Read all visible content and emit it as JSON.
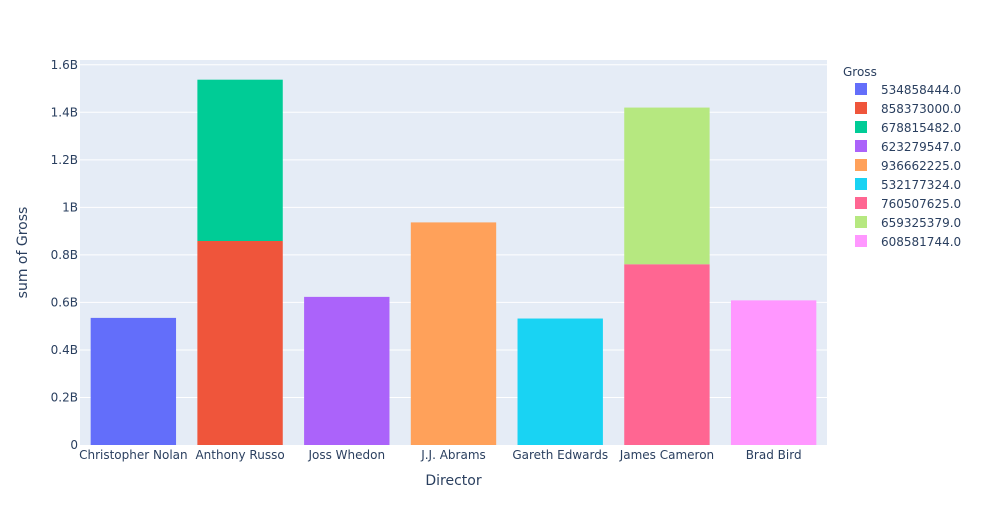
{
  "chart_data": {
    "type": "bar",
    "barmode": "stack",
    "xlabel": "Director",
    "ylabel": "sum of Gross",
    "ylim": [
      0,
      1620000000
    ],
    "yticks": [
      {
        "value": 0,
        "label": "0"
      },
      {
        "value": 200000000,
        "label": "0.2B"
      },
      {
        "value": 400000000,
        "label": "0.4B"
      },
      {
        "value": 600000000,
        "label": "0.6B"
      },
      {
        "value": 800000000,
        "label": "0.8B"
      },
      {
        "value": 1000000000,
        "label": "1B"
      },
      {
        "value": 1200000000,
        "label": "1.2B"
      },
      {
        "value": 1400000000,
        "label": "1.4B"
      },
      {
        "value": 1600000000,
        "label": "1.6B"
      }
    ],
    "categories": [
      "Christopher Nolan",
      "Anthony Russo",
      "Joss Whedon",
      "J.J. Abrams",
      "Gareth Edwards",
      "James Cameron",
      "Brad Bird"
    ],
    "legend_title": "Gross",
    "legend_position": "right",
    "grid": true,
    "series": [
      {
        "name": "534858444.0",
        "color": "#636efa",
        "category": "Christopher Nolan",
        "value": 534858444
      },
      {
        "name": "858373000.0",
        "color": "#ef553b",
        "category": "Anthony Russo",
        "value": 858373000
      },
      {
        "name": "678815482.0",
        "color": "#00cc96",
        "category": "Anthony Russo",
        "value": 678815482
      },
      {
        "name": "623279547.0",
        "color": "#ab63fa",
        "category": "Joss Whedon",
        "value": 623279547
      },
      {
        "name": "936662225.0",
        "color": "#ffa15a",
        "category": "J.J. Abrams",
        "value": 936662225
      },
      {
        "name": "532177324.0",
        "color": "#19d3f3",
        "category": "Gareth Edwards",
        "value": 532177324
      },
      {
        "name": "760507625.0",
        "color": "#ff6692",
        "category": "James Cameron",
        "value": 760507625
      },
      {
        "name": "659325379.0",
        "color": "#b6e880",
        "category": "James Cameron",
        "value": 659325379
      },
      {
        "name": "608581744.0",
        "color": "#ff97ff",
        "category": "Brad Bird",
        "value": 608581744
      }
    ]
  }
}
